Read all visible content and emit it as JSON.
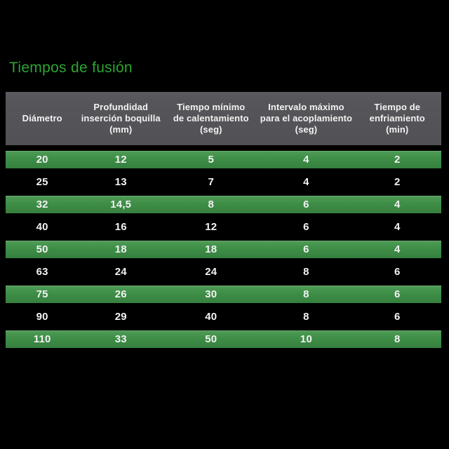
{
  "title": "Tiempos de fusión",
  "chart_data": {
    "type": "table",
    "title": "Tiempos de fusión",
    "columns": [
      "Diámetro",
      "Profundidad\ninserción boquilla\n(mm)",
      "Tiempo mínimo\nde calentamiento\n(seg)",
      "Intervalo máximo\npara el acoplamiento\n(seg)",
      "Tiempo de\nenfriamiento\n(min)"
    ],
    "rows": [
      [
        "20",
        "12",
        "5",
        "4",
        "2"
      ],
      [
        "25",
        "13",
        "7",
        "4",
        "2"
      ],
      [
        "32",
        "14,5",
        "8",
        "6",
        "4"
      ],
      [
        "40",
        "16",
        "12",
        "6",
        "4"
      ],
      [
        "50",
        "18",
        "18",
        "6",
        "4"
      ],
      [
        "63",
        "24",
        "24",
        "8",
        "6"
      ],
      [
        "75",
        "26",
        "30",
        "8",
        "6"
      ],
      [
        "90",
        "29",
        "40",
        "8",
        "6"
      ],
      [
        "110",
        "33",
        "50",
        "10",
        "8"
      ]
    ],
    "layout_hints": {
      "row_striping": "odd rows green, even rows black",
      "header_background": "gray",
      "page_background": "black"
    }
  },
  "colors": {
    "background": "#000000",
    "title_green": "#2ea532",
    "row_green": "#3e8e47",
    "header_gray": "#56565a",
    "text_white": "#f2f2f2"
  }
}
